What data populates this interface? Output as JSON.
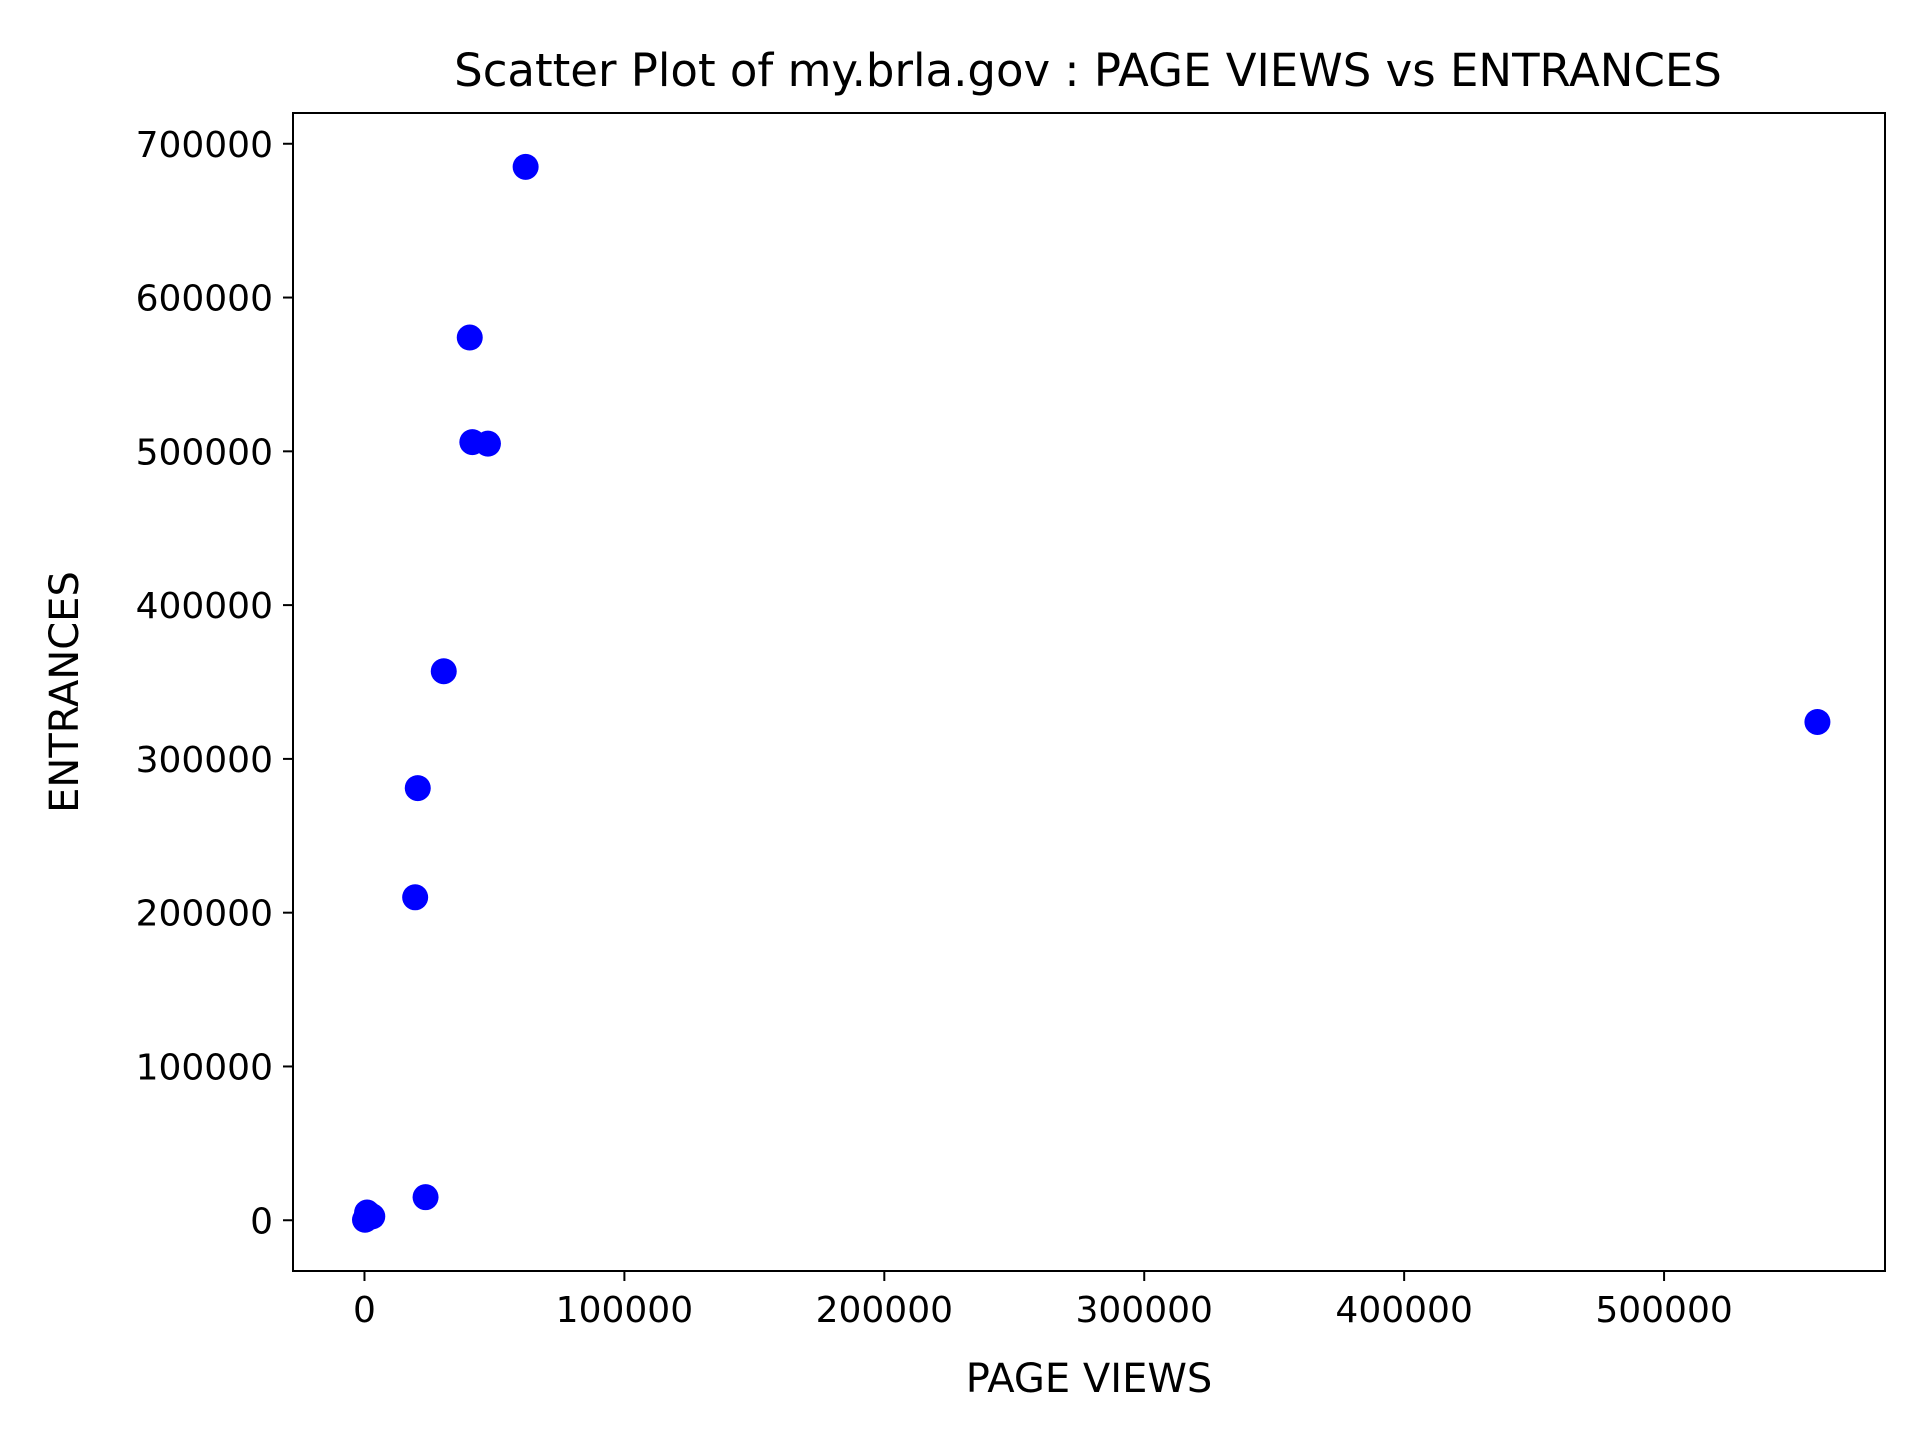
{
  "chart_data": {
    "type": "scatter",
    "title": "Scatter Plot of my.brla.gov : PAGE VIEWS vs ENTRANCES",
    "xlabel": "PAGE VIEWS",
    "ylabel": "ENTRANCES",
    "xlim": [
      -27500,
      585000
    ],
    "ylim": [
      -33000,
      720000
    ],
    "xticks": [
      0,
      100000,
      200000,
      300000,
      400000,
      500000
    ],
    "xtick_labels": [
      "0",
      "100000",
      "200000",
      "300000",
      "400000",
      "500000"
    ],
    "yticks": [
      0,
      100000,
      200000,
      300000,
      400000,
      500000,
      600000,
      700000
    ],
    "ytick_labels": [
      "0",
      "100000",
      "200000",
      "300000",
      "400000",
      "500000",
      "600000",
      "700000"
    ],
    "grid": false,
    "marker_color": "#0000ff",
    "points": [
      {
        "x": 62000,
        "y": 685000
      },
      {
        "x": 40500,
        "y": 574000
      },
      {
        "x": 41500,
        "y": 506000
      },
      {
        "x": 47500,
        "y": 505000
      },
      {
        "x": 30500,
        "y": 357000
      },
      {
        "x": 559000,
        "y": 324000
      },
      {
        "x": 20500,
        "y": 281000
      },
      {
        "x": 19500,
        "y": 210000
      },
      {
        "x": 23500,
        "y": 15000
      },
      {
        "x": 1000,
        "y": 5000
      },
      {
        "x": 3000,
        "y": 2500
      },
      {
        "x": 500,
        "y": 1000
      },
      {
        "x": 200,
        "y": 300
      },
      {
        "x": 2000,
        "y": 3500
      }
    ]
  }
}
